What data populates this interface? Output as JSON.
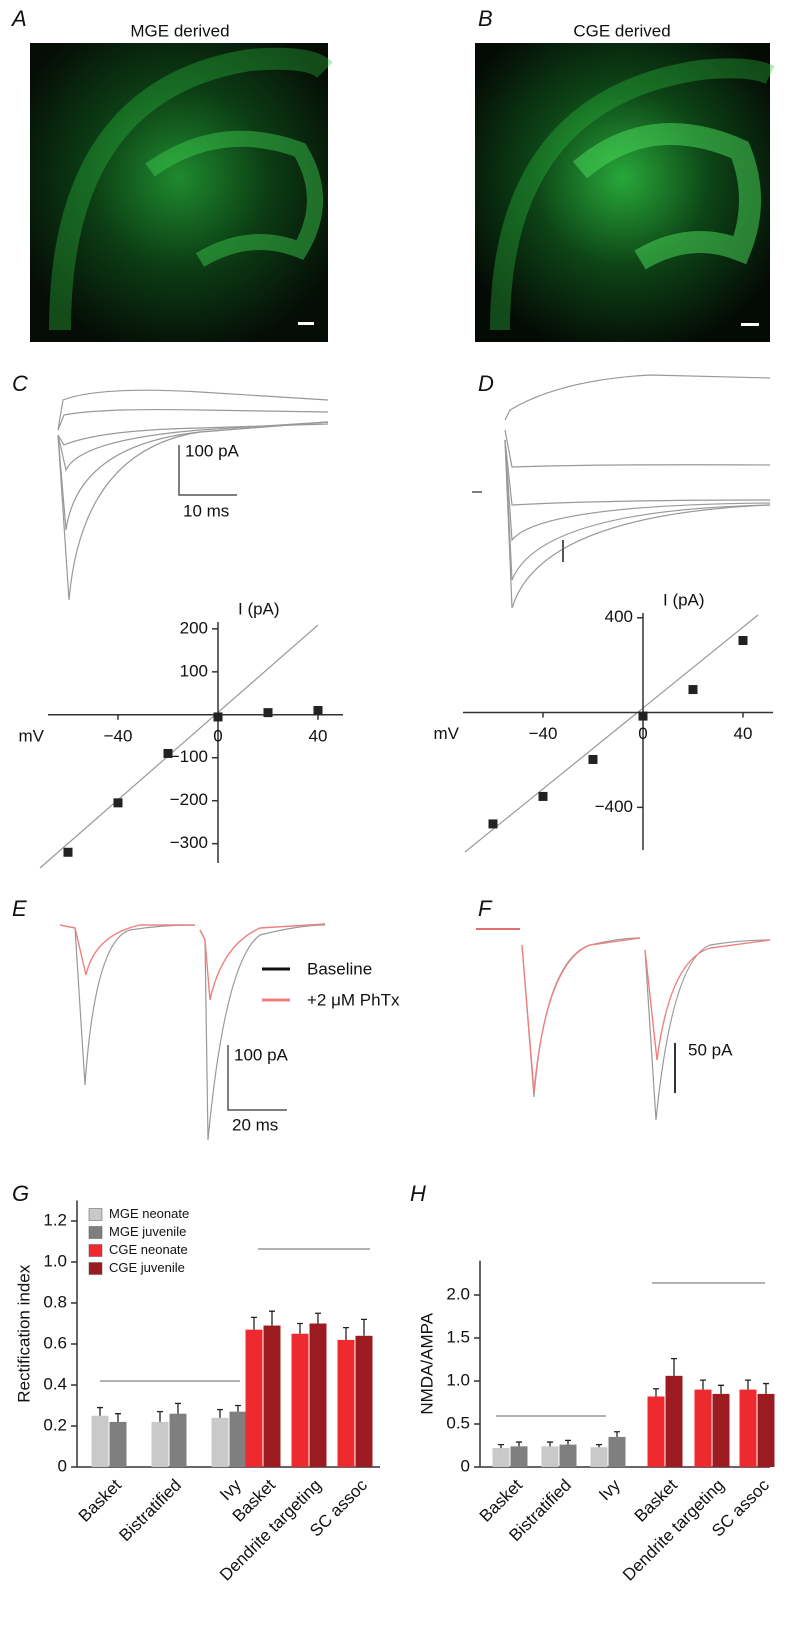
{
  "panels": [
    {
      "letter": "A",
      "title": "MGE derived"
    },
    {
      "letter": "B",
      "title": "CGE derived"
    },
    {
      "letter": "C",
      "scale": [
        "100 pA",
        "10 ms"
      ]
    },
    {
      "letter": "D"
    },
    {
      "letter": "E",
      "scale": [
        "100 pA",
        "20 ms"
      ],
      "legend": [
        "Baseline",
        "+2 μM PhTx"
      ]
    },
    {
      "letter": "F",
      "scale": [
        "50 pA"
      ]
    },
    {
      "letter": "G"
    },
    {
      "letter": "H"
    }
  ],
  "chart_data": [
    {
      "type": "scatter",
      "ylabel": "I (pA)",
      "xlabel": "mV",
      "color": "#222222",
      "x": [
        -60,
        -40,
        -20,
        0,
        20,
        40
      ],
      "values": [
        -320,
        -205,
        -90,
        -5,
        5,
        10
      ],
      "xlim": [
        -68,
        50
      ],
      "ylim": [
        -345,
        216
      ],
      "xticks": [
        {
          "value": -40,
          "label": "−40"
        },
        0,
        40
      ],
      "yticks": [
        200,
        100,
        {
          "value": -100,
          "label": "−100"
        },
        {
          "value": -200,
          "label": "−200"
        },
        {
          "value": -300,
          "label": "−300"
        }
      ]
    },
    {
      "type": "scatter",
      "ylabel": "I (pA)",
      "xlabel": "mV",
      "color": "#222222",
      "x": [
        -60,
        -40,
        -20,
        0,
        20,
        40
      ],
      "values": [
        -470,
        -354,
        -198,
        -15,
        97,
        304
      ],
      "xlim": [
        -72,
        52
      ],
      "ylim": [
        -580,
        420
      ],
      "xticks": [
        {
          "value": -40,
          "label": "−40"
        },
        0,
        40
      ],
      "yticks": [
        400,
        {
          "value": -400,
          "label": "−400"
        }
      ]
    },
    {
      "type": "bar",
      "ylabel": "Rectification index",
      "legend": "upper left",
      "categories": [
        "Basket",
        "Bistratified",
        "Ivy",
        "Basket",
        "Dendrite targeting",
        "SC assoc"
      ],
      "series": [
        {
          "name": "MGE neonate",
          "color": "#c9c9c9",
          "values": [
            0.25,
            0.22,
            0.24,
            null,
            null,
            null
          ],
          "errors": [
            0.04,
            0.05,
            0.04,
            null,
            null,
            null
          ]
        },
        {
          "name": "MGE juvenile",
          "color": "#7f7f7f",
          "values": [
            0.22,
            0.26,
            0.27,
            null,
            null,
            null
          ],
          "errors": [
            0.04,
            0.05,
            0.03,
            null,
            null,
            null
          ]
        },
        {
          "name": "CGE neonate",
          "color": "#ee2a2e",
          "values": [
            null,
            null,
            null,
            0.67,
            0.65,
            0.62
          ],
          "errors": [
            null,
            null,
            null,
            0.06,
            0.05,
            0.06
          ]
        },
        {
          "name": "CGE juvenile",
          "color": "#9c1b20",
          "values": [
            null,
            null,
            null,
            0.69,
            0.7,
            0.64
          ],
          "errors": [
            null,
            null,
            null,
            0.07,
            0.05,
            0.08
          ]
        }
      ],
      "ylim": [
        0,
        1.3
      ],
      "yticks": [
        0,
        0.2,
        0.4,
        0.6,
        0.8,
        {
          "value": 1,
          "label": "1.0"
        },
        1.2
      ]
    },
    {
      "type": "bar",
      "ylabel": "NMDA/AMPA",
      "categories": [
        "Basket",
        "Bistratified",
        "Ivy",
        "Basket",
        "Dendrite targeting",
        "SC assoc"
      ],
      "series": [
        {
          "color": "#c9c9c9",
          "values": [
            0.22,
            0.24,
            0.23,
            null,
            null,
            null
          ],
          "errors": [
            0.04,
            0.05,
            0.03,
            null,
            null,
            null
          ]
        },
        {
          "color": "#7f7f7f",
          "values": [
            0.24,
            0.26,
            0.35,
            null,
            null,
            null
          ],
          "errors": [
            0.05,
            0.05,
            0.06,
            null,
            null,
            null
          ]
        },
        {
          "color": "#ee2a2e",
          "values": [
            null,
            null,
            null,
            0.82,
            0.9,
            0.9
          ],
          "errors": [
            null,
            null,
            null,
            0.09,
            0.11,
            0.11
          ]
        },
        {
          "color": "#9c1b20",
          "values": [
            null,
            null,
            null,
            1.06,
            0.85,
            0.85
          ],
          "errors": [
            null,
            null,
            null,
            0.2,
            0.1,
            0.12
          ]
        }
      ],
      "ylim": [
        0,
        2.4
      ],
      "yticks": [
        0,
        0.5,
        {
          "value": 1,
          "label": "1.0"
        },
        1.5,
        {
          "value": 2,
          "label": "2.0"
        }
      ]
    }
  ]
}
